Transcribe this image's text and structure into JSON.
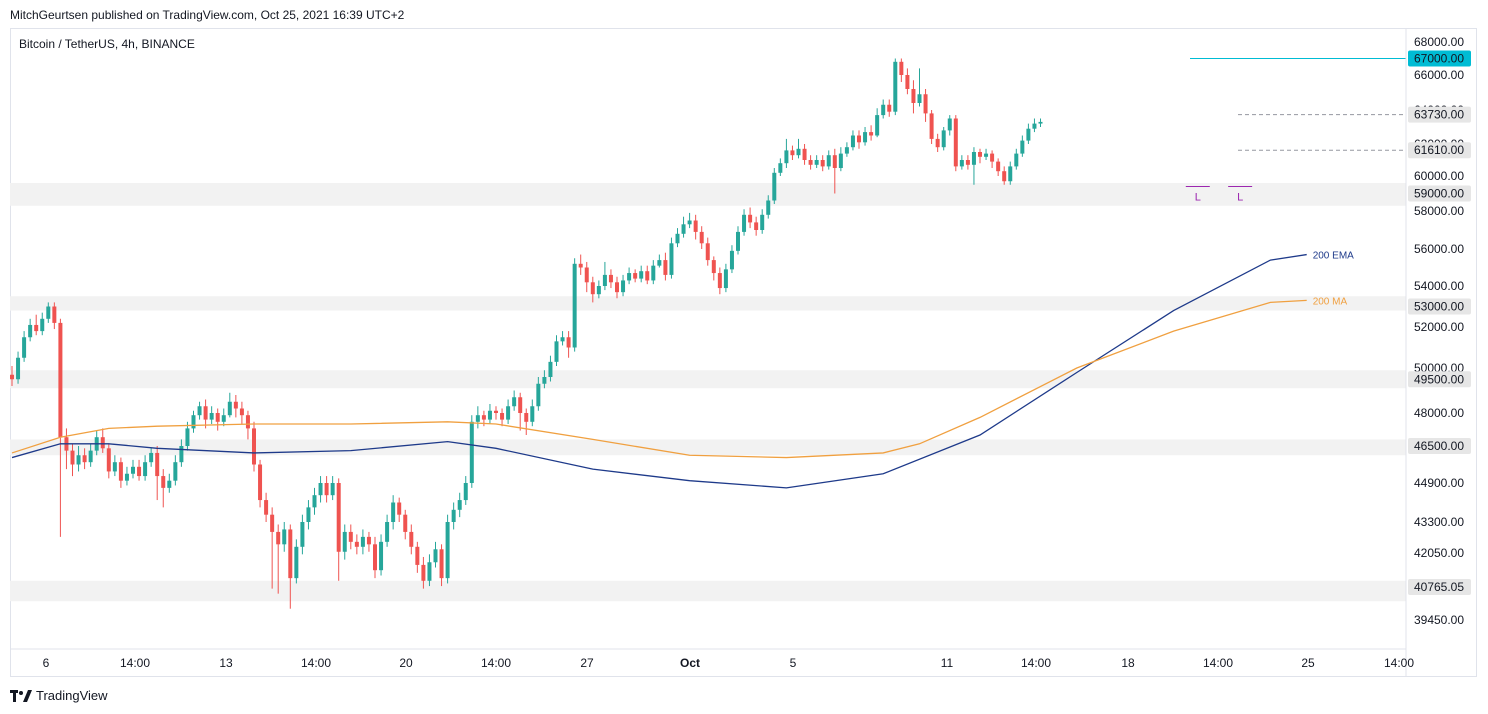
{
  "header": {
    "publisher": "MitchGeurtsen published on TradingView.com, Oct 25, 2021 16:39 UTC+2"
  },
  "symbol": "Bitcoin / TetherUS, 4h, BINANCE",
  "footer": {
    "brand": "TradingView"
  },
  "colors": {
    "up": "#26a69a",
    "down": "#ef5350",
    "ema": "#1e3a8a",
    "ma": "#f0a040",
    "zone": "#f2f2f2",
    "resistance": "#00bcd4",
    "dashed": "#9598a1",
    "marker": "#9c27b0"
  },
  "chart_data": {
    "type": "candlestick",
    "symbol": "Bitcoin / TetherUS",
    "interval": "4h",
    "exchange": "BINANCE",
    "x_tick_labels": [
      "6",
      "14:00",
      "13",
      "14:00",
      "20",
      "14:00",
      "27",
      "Oct",
      "5",
      "11",
      "14:00",
      "18",
      "14:00",
      "25",
      "14:00"
    ],
    "y_tick_labels": [
      "68000.00",
      "66000.00",
      "64000.00",
      "62000.00",
      "60000.00",
      "58000.00",
      "56000.00",
      "54000.00",
      "52000.00",
      "50000.00",
      "48000.00",
      "44900.00",
      "43300.00",
      "42050.00",
      "39450.00"
    ],
    "ylim": [
      39000,
      68500
    ],
    "price_levels": [
      {
        "value": "67000.00",
        "kind": "resistance-line"
      },
      {
        "value": "63730.00",
        "kind": "dashed-line"
      },
      {
        "value": "61610.00",
        "kind": "dashed-line"
      },
      {
        "value": "59000.00",
        "kind": "zone"
      },
      {
        "value": "53000.00",
        "kind": "zone"
      },
      {
        "value": "49500.00",
        "kind": "zone"
      },
      {
        "value": "46500.00",
        "kind": "zone"
      },
      {
        "value": "40765.05",
        "kind": "zone"
      }
    ],
    "series": [
      {
        "name": "200 EMA",
        "values": [
          [
            0,
            46000
          ],
          [
            8,
            46600
          ],
          [
            16,
            46600
          ],
          [
            24,
            46400
          ],
          [
            40,
            46200
          ],
          [
            56,
            46300
          ],
          [
            72,
            46700
          ],
          [
            80,
            46400
          ],
          [
            96,
            45500
          ],
          [
            112,
            45000
          ],
          [
            128,
            44700
          ],
          [
            144,
            45300
          ],
          [
            160,
            47000
          ],
          [
            176,
            49800
          ],
          [
            192,
            52800
          ],
          [
            208,
            55400
          ],
          [
            214,
            55700
          ]
        ]
      },
      {
        "name": "200 MA",
        "values": [
          [
            0,
            46200
          ],
          [
            8,
            46900
          ],
          [
            16,
            47300
          ],
          [
            24,
            47400
          ],
          [
            40,
            47500
          ],
          [
            56,
            47500
          ],
          [
            72,
            47600
          ],
          [
            80,
            47500
          ],
          [
            96,
            46800
          ],
          [
            112,
            46100
          ],
          [
            128,
            46000
          ],
          [
            144,
            46200
          ],
          [
            150,
            46600
          ],
          [
            160,
            47800
          ],
          [
            176,
            50000
          ],
          [
            192,
            51800
          ],
          [
            208,
            53200
          ],
          [
            214,
            53300
          ]
        ]
      }
    ],
    "markers": [
      {
        "x": 196,
        "price": 59400,
        "label": "L"
      },
      {
        "x": 203,
        "price": 59400,
        "label": "L"
      }
    ],
    "candles": [
      [
        49700,
        49500,
        50100,
        49200
      ],
      [
        49500,
        50500,
        50800,
        49300
      ],
      [
        50500,
        51500,
        51800,
        50300
      ],
      [
        51500,
        52100,
        52400,
        51300
      ],
      [
        52100,
        51800,
        52600,
        51600
      ],
      [
        51800,
        52400,
        52700,
        51600
      ],
      [
        52400,
        53000,
        53200,
        52200
      ],
      [
        53000,
        52200,
        53200,
        51900
      ],
      [
        52200,
        46900,
        52400,
        42700
      ],
      [
        46900,
        46300,
        47300,
        45500
      ],
      [
        46300,
        45700,
        46600,
        45200
      ],
      [
        45700,
        46100,
        46500,
        45400
      ],
      [
        46100,
        45800,
        46400,
        45500
      ],
      [
        45800,
        46300,
        46600,
        45600
      ],
      [
        46300,
        46900,
        47200,
        46100
      ],
      [
        46900,
        46400,
        47300,
        46200
      ],
      [
        46400,
        45400,
        46600,
        45100
      ],
      [
        45400,
        45800,
        46100,
        45200
      ],
      [
        45800,
        45000,
        46000,
        44700
      ],
      [
        45000,
        45300,
        45600,
        44800
      ],
      [
        45300,
        45600,
        45900,
        45100
      ],
      [
        45600,
        45200,
        45900,
        45000
      ],
      [
        45200,
        45800,
        46100,
        45000
      ],
      [
        45800,
        46200,
        46400,
        45600
      ],
      [
        46200,
        45200,
        46500,
        44200
      ],
      [
        45200,
        44700,
        45500,
        43900
      ],
      [
        44700,
        45000,
        45300,
        44500
      ],
      [
        45000,
        45800,
        46100,
        44800
      ],
      [
        45800,
        46500,
        46800,
        45600
      ],
      [
        46500,
        47300,
        47600,
        46300
      ],
      [
        47300,
        47900,
        48100,
        47100
      ],
      [
        47900,
        48300,
        48500,
        47700
      ],
      [
        48300,
        47700,
        48600,
        47300
      ],
      [
        47700,
        48000,
        48300,
        47500
      ],
      [
        48000,
        47600,
        48200,
        47200
      ],
      [
        47600,
        47900,
        48200,
        47400
      ],
      [
        47900,
        48500,
        48900,
        47800
      ],
      [
        48500,
        48200,
        48800,
        47800
      ],
      [
        48200,
        47900,
        48500,
        47500
      ],
      [
        47900,
        47300,
        48100,
        46800
      ],
      [
        47300,
        45700,
        47600,
        45400
      ],
      [
        45700,
        44200,
        45900,
        43900
      ],
      [
        44200,
        43600,
        44500,
        43300
      ],
      [
        43600,
        42900,
        43900,
        40700
      ],
      [
        42900,
        42400,
        43200,
        40500
      ],
      [
        42400,
        43000,
        43300,
        42100
      ],
      [
        43000,
        41100,
        43200,
        39900
      ],
      [
        41100,
        42300,
        42600,
        40900
      ],
      [
        42300,
        43300,
        43600,
        42000
      ],
      [
        43300,
        43900,
        44200,
        43000
      ],
      [
        43900,
        44400,
        44700,
        43600
      ],
      [
        44400,
        44900,
        45200,
        44100
      ],
      [
        44900,
        44400,
        45200,
        44100
      ],
      [
        44400,
        44900,
        45200,
        44200
      ],
      [
        44900,
        42100,
        45100,
        41000
      ],
      [
        42100,
        42900,
        43200,
        41800
      ],
      [
        42900,
        42500,
        43200,
        42200
      ],
      [
        42500,
        42300,
        42800,
        42000
      ],
      [
        42300,
        42700,
        43000,
        42000
      ],
      [
        42700,
        42400,
        42900,
        42100
      ],
      [
        42400,
        41400,
        42700,
        41100
      ],
      [
        41400,
        42500,
        42800,
        41200
      ],
      [
        42500,
        43300,
        43600,
        42300
      ],
      [
        43300,
        44100,
        44400,
        43000
      ],
      [
        44100,
        43600,
        44300,
        43300
      ],
      [
        43600,
        42900,
        43800,
        42600
      ],
      [
        42900,
        42300,
        43200,
        42000
      ],
      [
        42300,
        41600,
        42500,
        41300
      ],
      [
        41600,
        41000,
        41900,
        40700
      ],
      [
        41000,
        41700,
        42000,
        40800
      ],
      [
        41700,
        42200,
        42500,
        41500
      ],
      [
        42200,
        41100,
        42400,
        40800
      ],
      [
        41100,
        43300,
        43600,
        40900
      ],
      [
        43300,
        43800,
        44100,
        43000
      ],
      [
        43800,
        44200,
        44500,
        43500
      ],
      [
        44200,
        44900,
        45200,
        44000
      ],
      [
        44900,
        47600,
        47900,
        44700
      ],
      [
        47600,
        47900,
        48300,
        47300
      ],
      [
        47900,
        47700,
        48100,
        47400
      ],
      [
        47700,
        48100,
        48400,
        47500
      ],
      [
        48100,
        48000,
        48300,
        47700
      ],
      [
        48000,
        47700,
        48200,
        47400
      ],
      [
        47700,
        48300,
        48600,
        47500
      ],
      [
        48300,
        48700,
        49000,
        48100
      ],
      [
        48700,
        48000,
        48900,
        47200
      ],
      [
        48000,
        47600,
        48200,
        47000
      ],
      [
        47600,
        48300,
        48600,
        47400
      ],
      [
        48300,
        49300,
        49600,
        48100
      ],
      [
        49300,
        49600,
        49900,
        49100
      ],
      [
        49600,
        50300,
        50600,
        49400
      ],
      [
        50300,
        51300,
        51600,
        50100
      ],
      [
        51300,
        51500,
        51800,
        51100
      ],
      [
        51500,
        51000,
        51800,
        50500
      ],
      [
        51000,
        55200,
        55500,
        50800
      ],
      [
        55200,
        55000,
        55700,
        54600
      ],
      [
        55000,
        54200,
        55300,
        53700
      ],
      [
        54200,
        53600,
        54500,
        53200
      ],
      [
        53600,
        54000,
        54300,
        53400
      ],
      [
        54000,
        54600,
        55300,
        53800
      ],
      [
        54600,
        54200,
        54900,
        53900
      ],
      [
        54200,
        53700,
        54500,
        53400
      ],
      [
        53700,
        54300,
        54600,
        53500
      ],
      [
        54300,
        54700,
        55000,
        54100
      ],
      [
        54700,
        54400,
        54900,
        54200
      ],
      [
        54400,
        54800,
        55100,
        54200
      ],
      [
        54800,
        54300,
        55100,
        54100
      ],
      [
        54300,
        55100,
        55400,
        54100
      ],
      [
        55100,
        55400,
        55700,
        55000
      ],
      [
        55400,
        54600,
        55800,
        54300
      ],
      [
        54600,
        56300,
        56600,
        54400
      ],
      [
        56300,
        56800,
        57100,
        56100
      ],
      [
        56800,
        57300,
        57700,
        56600
      ],
      [
        57300,
        57500,
        57900,
        57100
      ],
      [
        57500,
        56900,
        57800,
        56500
      ],
      [
        56900,
        56300,
        57200,
        56000
      ],
      [
        56300,
        55400,
        56600,
        55100
      ],
      [
        55400,
        54700,
        55600,
        54300
      ],
      [
        54700,
        53900,
        55000,
        53600
      ],
      [
        53900,
        54900,
        55200,
        53700
      ],
      [
        54900,
        55900,
        56200,
        54700
      ],
      [
        55900,
        56900,
        57200,
        55700
      ],
      [
        56900,
        57800,
        58100,
        56700
      ],
      [
        57800,
        57400,
        58200,
        57100
      ],
      [
        57400,
        57000,
        57700,
        56700
      ],
      [
        57000,
        57800,
        58100,
        56800
      ],
      [
        57800,
        58600,
        58900,
        57600
      ],
      [
        58600,
        60200,
        60500,
        58400
      ],
      [
        60200,
        60800,
        61100,
        60000
      ],
      [
        60800,
        61600,
        62300,
        60500
      ],
      [
        61600,
        61300,
        61900,
        61000
      ],
      [
        61300,
        61700,
        62300,
        61100
      ],
      [
        61700,
        61000,
        62000,
        60700
      ],
      [
        61000,
        60700,
        61300,
        60400
      ],
      [
        60700,
        61000,
        61300,
        60500
      ],
      [
        61000,
        60600,
        61300,
        60300
      ],
      [
        60600,
        61300,
        61600,
        60400
      ],
      [
        61300,
        60500,
        61700,
        59000
      ],
      [
        60500,
        61400,
        61800,
        60300
      ],
      [
        61400,
        61800,
        62100,
        61200
      ],
      [
        61800,
        62500,
        62800,
        61600
      ],
      [
        62500,
        62100,
        62800,
        61700
      ],
      [
        62100,
        62700,
        63000,
        61900
      ],
      [
        62700,
        62500,
        63100,
        62200
      ],
      [
        62500,
        63700,
        64100,
        62400
      ],
      [
        63700,
        64300,
        64600,
        63500
      ],
      [
        64300,
        63900,
        64600,
        63600
      ],
      [
        63900,
        66800,
        67000,
        63700
      ],
      [
        66800,
        66000,
        67000,
        65600
      ],
      [
        66000,
        65200,
        66400,
        64900
      ],
      [
        65200,
        64400,
        65700,
        63800
      ],
      [
        64400,
        64900,
        66400,
        64200
      ],
      [
        64900,
        63800,
        65200,
        63300
      ],
      [
        63800,
        62300,
        64000,
        62000
      ],
      [
        62300,
        61800,
        62600,
        61500
      ],
      [
        61800,
        62800,
        63000,
        61600
      ],
      [
        62800,
        63500,
        63700,
        62500
      ],
      [
        63500,
        60600,
        63700,
        60300
      ],
      [
        60600,
        61000,
        61300,
        60400
      ],
      [
        61000,
        60700,
        61300,
        60400
      ],
      [
        60700,
        61500,
        61800,
        59500
      ],
      [
        61500,
        61200,
        61700,
        60800
      ],
      [
        61200,
        61400,
        61700,
        61000
      ],
      [
        61400,
        60900,
        61600,
        60500
      ],
      [
        60900,
        60300,
        61100,
        60000
      ],
      [
        60300,
        59700,
        60600,
        59500
      ],
      [
        59700,
        60600,
        60900,
        59500
      ],
      [
        60600,
        61400,
        61700,
        60400
      ],
      [
        61400,
        62200,
        62500,
        61200
      ],
      [
        62200,
        62900,
        63200,
        62000
      ],
      [
        62900,
        63200,
        63500,
        62700
      ],
      [
        63200,
        63300,
        63500,
        63000
      ]
    ]
  }
}
